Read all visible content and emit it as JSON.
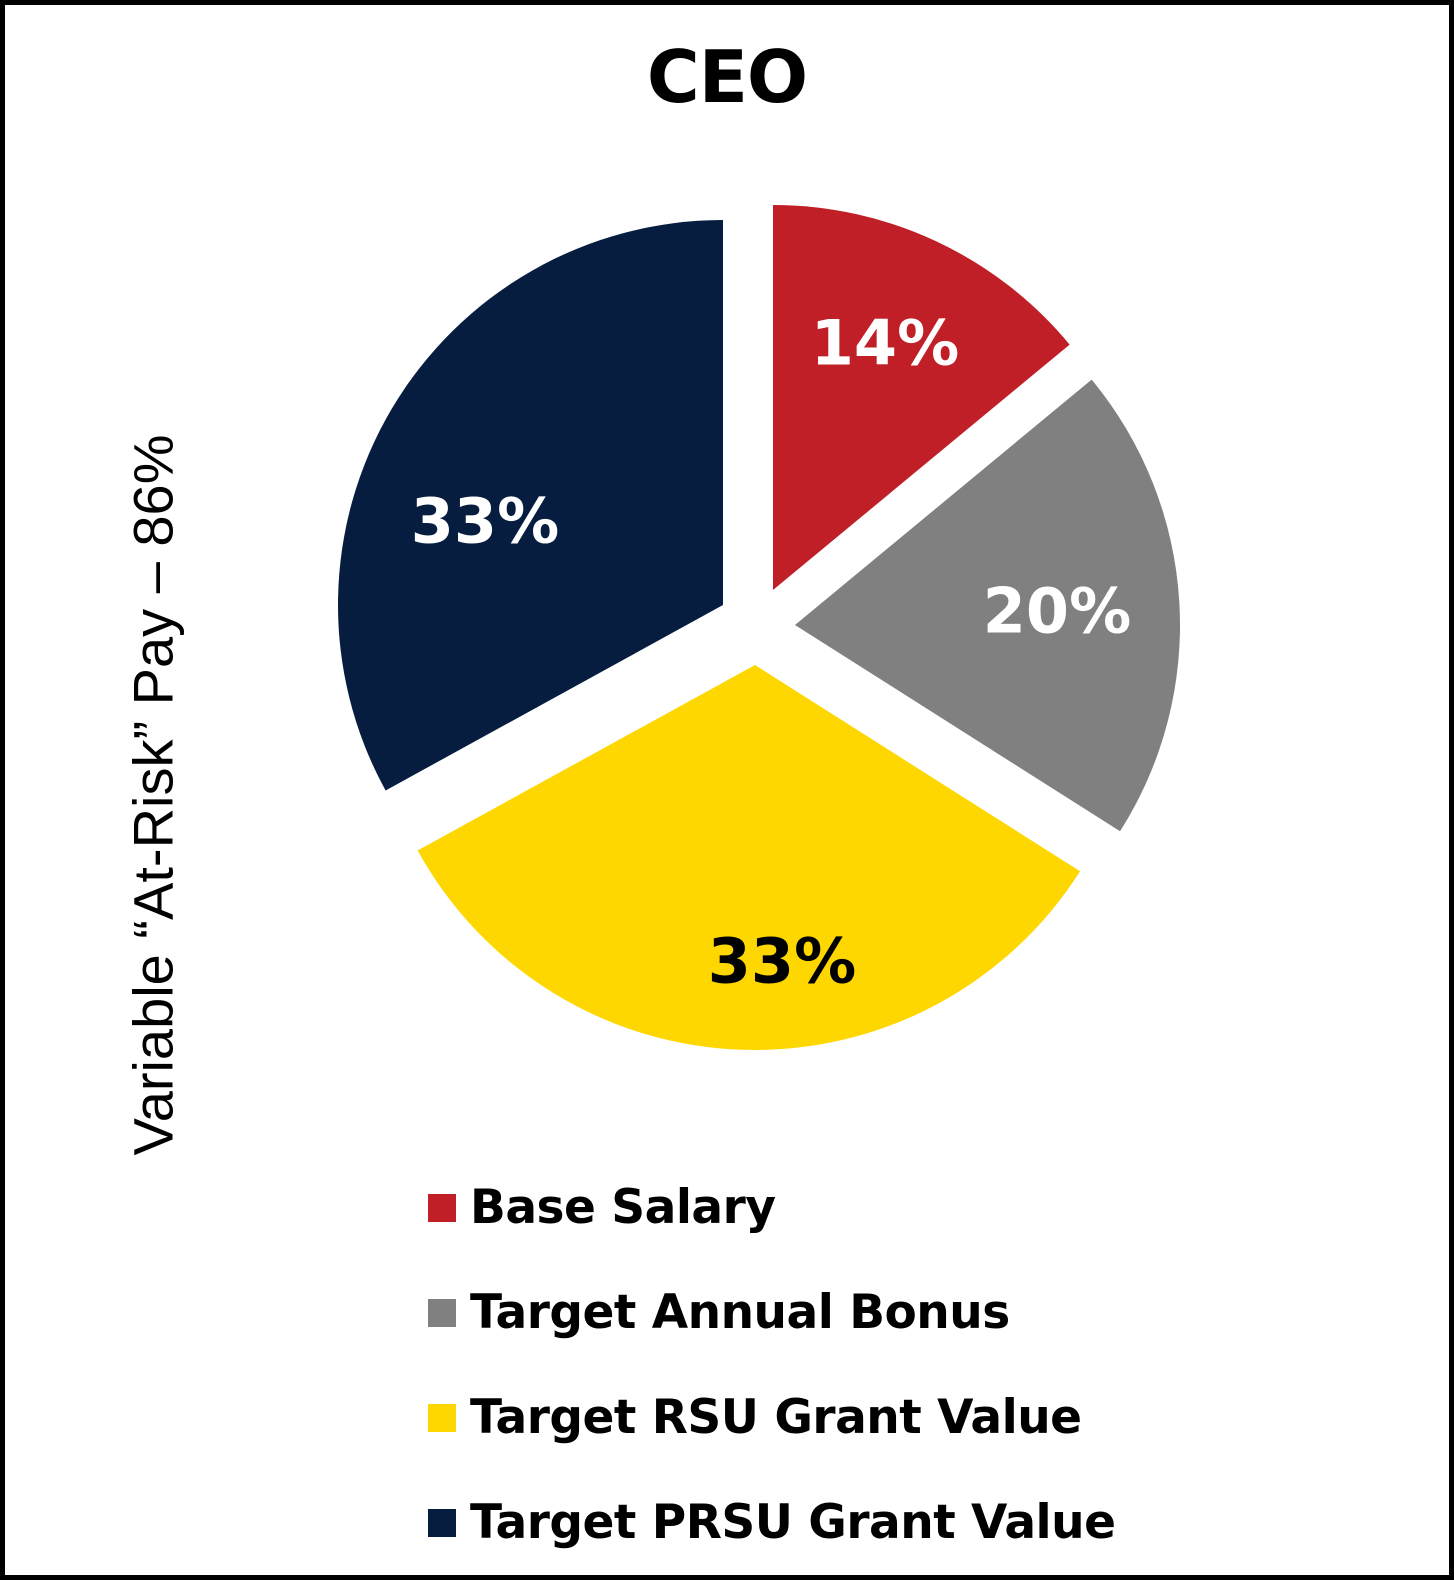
{
  "chart_data": {
    "type": "pie",
    "title": "CEO",
    "side_label": "Variable “At-Risk” Pay – 86%",
    "legend_position": "bottom",
    "slices": [
      {
        "name": "Base Salary",
        "value": 14,
        "label": "14%",
        "color": "#C01F27",
        "label_color": "#FFFFFF"
      },
      {
        "name": "Target Annual Bonus",
        "value": 20,
        "label": "20%",
        "color": "#808080",
        "label_color": "#FFFFFF"
      },
      {
        "name": "Target RSU Grant Value",
        "value": 33,
        "label": "33%",
        "color": "#FFD700",
        "label_color": "#000000"
      },
      {
        "name": "Target PRSU Grant Value",
        "value": 33,
        "label": "33%",
        "color": "#061D3F",
        "label_color": "#FFFFFF"
      }
    ]
  }
}
